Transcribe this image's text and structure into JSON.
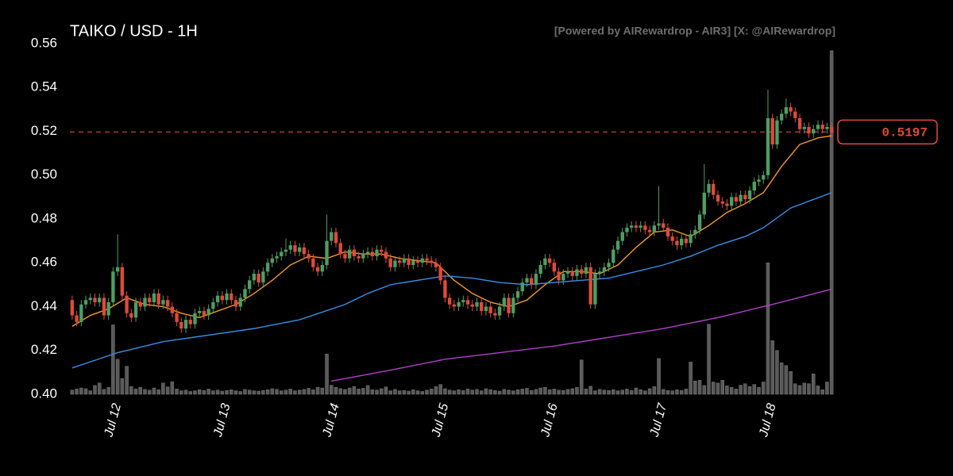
{
  "chart_data": {
    "type": "candlestick",
    "title": "TAIKO / USD - 1H",
    "subtitle": "[Powered by AIRewardrop - AIR3] [X: @AIRewardrop]",
    "colors": {
      "up": "#4e9e64",
      "down": "#e04a3a",
      "volume": "#5a5a5a",
      "last_price": "#e04a3a"
    },
    "xlim": [
      -10.5,
      157.5
    ],
    "xticks": [
      {
        "value": 0,
        "label": "Jul 12"
      },
      {
        "value": 24,
        "label": "Jul 13"
      },
      {
        "value": 48,
        "label": "Jul 14"
      },
      {
        "value": 72,
        "label": "Jul 15"
      },
      {
        "value": 96,
        "label": "Jul 16"
      },
      {
        "value": 120,
        "label": "Jul 17"
      },
      {
        "value": 144,
        "label": "Jul 18"
      }
    ],
    "ylim": [
      0.4,
      0.56
    ],
    "yticks": [
      {
        "value": 0.4,
        "label": "0.40"
      },
      0.42,
      0.44,
      0.46,
      0.48,
      {
        "value": 0.5,
        "label": "0.50"
      },
      0.52,
      0.54,
      0.56
    ],
    "volume_ylim": [
      0,
      100
    ],
    "x": [
      -10,
      -9,
      -8,
      -7,
      -6,
      -5,
      -4,
      -3,
      -2,
      -1,
      0,
      1,
      2,
      3,
      4,
      5,
      6,
      7,
      8,
      9,
      10,
      11,
      12,
      13,
      14,
      15,
      16,
      17,
      18,
      19,
      20,
      21,
      22,
      23,
      24,
      25,
      26,
      27,
      28,
      29,
      30,
      31,
      32,
      33,
      34,
      35,
      36,
      37,
      38,
      39,
      40,
      41,
      42,
      43,
      44,
      45,
      46,
      47,
      48,
      49,
      50,
      51,
      52,
      53,
      54,
      55,
      56,
      57,
      58,
      59,
      60,
      61,
      62,
      63,
      64,
      65,
      66,
      67,
      68,
      69,
      70,
      71,
      72,
      73,
      74,
      75,
      76,
      77,
      78,
      79,
      80,
      81,
      82,
      83,
      84,
      85,
      86,
      87,
      88,
      89,
      90,
      91,
      92,
      93,
      94,
      95,
      96,
      97,
      98,
      99,
      100,
      101,
      102,
      103,
      104,
      105,
      106,
      107,
      108,
      109,
      110,
      111,
      112,
      113,
      114,
      115,
      116,
      117,
      118,
      119,
      120,
      121,
      122,
      123,
      124,
      125,
      126,
      127,
      128,
      129,
      130,
      131,
      132,
      133,
      134,
      135,
      136,
      137,
      138,
      139,
      140,
      141,
      142,
      143,
      144,
      145,
      146,
      147,
      148,
      149,
      150,
      151,
      152,
      153,
      154,
      155,
      156,
      157
    ],
    "open": [
      0.443,
      0.436,
      0.433,
      0.441,
      0.443,
      0.444,
      0.442,
      0.444,
      0.436,
      0.442,
      0.456,
      0.458,
      0.445,
      0.437,
      0.435,
      0.442,
      0.44,
      0.444,
      0.442,
      0.446,
      0.441,
      0.443,
      0.44,
      0.437,
      0.433,
      0.43,
      0.434,
      0.432,
      0.437,
      0.438,
      0.436,
      0.439,
      0.442,
      0.445,
      0.443,
      0.446,
      0.443,
      0.44,
      0.444,
      0.448,
      0.452,
      0.455,
      0.451,
      0.456,
      0.46,
      0.462,
      0.463,
      0.465,
      0.466,
      0.468,
      0.465,
      0.467,
      0.464,
      0.462,
      0.458,
      0.456,
      0.459,
      0.47,
      0.474,
      0.469,
      0.464,
      0.462,
      0.466,
      0.463,
      0.462,
      0.464,
      0.465,
      0.463,
      0.466,
      0.465,
      0.462,
      0.458,
      0.461,
      0.46,
      0.462,
      0.459,
      0.461,
      0.46,
      0.462,
      0.461,
      0.46,
      0.458,
      0.452,
      0.444,
      0.441,
      0.44,
      0.442,
      0.443,
      0.441,
      0.44,
      0.442,
      0.438,
      0.44,
      0.437,
      0.436,
      0.44,
      0.444,
      0.437,
      0.444,
      0.447,
      0.451,
      0.453,
      0.45,
      0.455,
      0.459,
      0.462,
      0.46,
      0.456,
      0.452,
      0.455,
      0.456,
      0.454,
      0.457,
      0.455,
      0.458,
      0.441,
      0.455,
      0.456,
      0.458,
      0.46,
      0.466,
      0.47,
      0.474,
      0.476,
      0.477,
      0.476,
      0.477,
      0.475,
      0.474,
      0.477,
      0.478,
      0.476,
      0.472,
      0.47,
      0.468,
      0.471,
      0.469,
      0.473,
      0.475,
      0.482,
      0.492,
      0.496,
      0.491,
      0.488,
      0.487,
      0.486,
      0.49,
      0.488,
      0.491,
      0.489,
      0.493,
      0.497,
      0.498,
      0.5,
      0.526,
      0.514,
      0.525,
      0.528,
      0.531,
      0.529,
      0.526,
      0.521,
      0.522,
      0.519,
      0.521,
      0.523,
      0.521,
      0.522
    ],
    "high": [
      0.445,
      0.438,
      0.443,
      0.445,
      0.446,
      0.446,
      0.446,
      0.446,
      0.444,
      0.458,
      0.473,
      0.46,
      0.447,
      0.439,
      0.444,
      0.444,
      0.446,
      0.446,
      0.448,
      0.448,
      0.445,
      0.445,
      0.442,
      0.439,
      0.435,
      0.436,
      0.436,
      0.439,
      0.44,
      0.44,
      0.441,
      0.444,
      0.447,
      0.447,
      0.448,
      0.448,
      0.445,
      0.446,
      0.45,
      0.454,
      0.457,
      0.457,
      0.458,
      0.462,
      0.464,
      0.465,
      0.467,
      0.471,
      0.47,
      0.47,
      0.469,
      0.469,
      0.466,
      0.464,
      0.46,
      0.461,
      0.482,
      0.476,
      0.476,
      0.471,
      0.466,
      0.468,
      0.468,
      0.465,
      0.466,
      0.467,
      0.467,
      0.468,
      0.468,
      0.467,
      0.464,
      0.463,
      0.463,
      0.464,
      0.464,
      0.463,
      0.463,
      0.464,
      0.464,
      0.463,
      0.462,
      0.46,
      0.454,
      0.446,
      0.443,
      0.444,
      0.445,
      0.445,
      0.443,
      0.444,
      0.444,
      0.442,
      0.442,
      0.439,
      0.442,
      0.446,
      0.446,
      0.446,
      0.449,
      0.453,
      0.455,
      0.455,
      0.457,
      0.461,
      0.464,
      0.464,
      0.462,
      0.458,
      0.457,
      0.458,
      0.458,
      0.459,
      0.459,
      0.46,
      0.46,
      0.457,
      0.458,
      0.46,
      0.462,
      0.468,
      0.472,
      0.476,
      0.478,
      0.479,
      0.479,
      0.479,
      0.479,
      0.477,
      0.479,
      0.495,
      0.48,
      0.478,
      0.474,
      0.472,
      0.473,
      0.473,
      0.475,
      0.477,
      0.484,
      0.505,
      0.498,
      0.498,
      0.493,
      0.49,
      0.489,
      0.492,
      0.492,
      0.493,
      0.493,
      0.495,
      0.499,
      0.5,
      0.502,
      0.539,
      0.528,
      0.527,
      0.53,
      0.535,
      0.533,
      0.531,
      0.528,
      0.524,
      0.524,
      0.523,
      0.525,
      0.525,
      0.524,
      0.524
    ],
    "low": [
      0.434,
      0.431,
      0.431,
      0.439,
      0.441,
      0.44,
      0.44,
      0.434,
      0.434,
      0.44,
      0.454,
      0.443,
      0.435,
      0.433,
      0.433,
      0.438,
      0.438,
      0.44,
      0.44,
      0.439,
      0.439,
      0.438,
      0.435,
      0.431,
      0.428,
      0.428,
      0.43,
      0.43,
      0.435,
      0.434,
      0.434,
      0.437,
      0.44,
      0.441,
      0.441,
      0.441,
      0.438,
      0.438,
      0.442,
      0.446,
      0.45,
      0.449,
      0.449,
      0.454,
      0.458,
      0.46,
      0.461,
      0.463,
      0.464,
      0.463,
      0.463,
      0.462,
      0.46,
      0.456,
      0.454,
      0.454,
      0.457,
      0.468,
      0.467,
      0.462,
      0.46,
      0.46,
      0.461,
      0.46,
      0.46,
      0.462,
      0.461,
      0.461,
      0.463,
      0.46,
      0.456,
      0.456,
      0.458,
      0.458,
      0.457,
      0.457,
      0.458,
      0.458,
      0.459,
      0.458,
      0.456,
      0.45,
      0.442,
      0.439,
      0.438,
      0.438,
      0.44,
      0.439,
      0.438,
      0.438,
      0.436,
      0.436,
      0.435,
      0.434,
      0.434,
      0.438,
      0.435,
      0.435,
      0.442,
      0.445,
      0.449,
      0.448,
      0.448,
      0.453,
      0.457,
      0.458,
      0.454,
      0.45,
      0.45,
      0.453,
      0.452,
      0.452,
      0.453,
      0.453,
      0.439,
      0.439,
      0.453,
      0.454,
      0.456,
      0.458,
      0.464,
      0.468,
      0.472,
      0.474,
      0.474,
      0.474,
      0.473,
      0.472,
      0.472,
      0.475,
      0.474,
      0.47,
      0.468,
      0.466,
      0.466,
      0.467,
      0.467,
      0.471,
      0.473,
      0.48,
      0.49,
      0.489,
      0.486,
      0.485,
      0.484,
      0.484,
      0.486,
      0.486,
      0.487,
      0.487,
      0.491,
      0.495,
      0.496,
      0.498,
      0.512,
      0.512,
      0.523,
      0.526,
      0.527,
      0.524,
      0.519,
      0.519,
      0.517,
      0.517,
      0.519,
      0.519,
      0.519,
      0.517
    ],
    "close": [
      0.436,
      0.433,
      0.441,
      0.443,
      0.444,
      0.442,
      0.444,
      0.436,
      0.442,
      0.456,
      0.458,
      0.445,
      0.437,
      0.435,
      0.442,
      0.44,
      0.444,
      0.442,
      0.446,
      0.441,
      0.443,
      0.44,
      0.437,
      0.433,
      0.43,
      0.434,
      0.432,
      0.437,
      0.438,
      0.436,
      0.439,
      0.442,
      0.445,
      0.443,
      0.446,
      0.443,
      0.44,
      0.444,
      0.448,
      0.452,
      0.455,
      0.451,
      0.456,
      0.46,
      0.462,
      0.463,
      0.465,
      0.466,
      0.468,
      0.465,
      0.467,
      0.464,
      0.462,
      0.458,
      0.456,
      0.459,
      0.47,
      0.474,
      0.469,
      0.464,
      0.462,
      0.466,
      0.463,
      0.462,
      0.464,
      0.465,
      0.463,
      0.466,
      0.465,
      0.462,
      0.458,
      0.461,
      0.46,
      0.462,
      0.459,
      0.461,
      0.46,
      0.462,
      0.461,
      0.46,
      0.458,
      0.452,
      0.444,
      0.441,
      0.44,
      0.442,
      0.443,
      0.441,
      0.44,
      0.442,
      0.438,
      0.44,
      0.437,
      0.436,
      0.44,
      0.444,
      0.437,
      0.444,
      0.447,
      0.451,
      0.453,
      0.45,
      0.455,
      0.459,
      0.462,
      0.46,
      0.456,
      0.452,
      0.455,
      0.456,
      0.454,
      0.457,
      0.455,
      0.458,
      0.441,
      0.455,
      0.456,
      0.458,
      0.46,
      0.466,
      0.47,
      0.474,
      0.476,
      0.477,
      0.476,
      0.477,
      0.475,
      0.474,
      0.477,
      0.478,
      0.476,
      0.472,
      0.47,
      0.468,
      0.471,
      0.469,
      0.473,
      0.475,
      0.482,
      0.492,
      0.496,
      0.491,
      0.488,
      0.487,
      0.486,
      0.49,
      0.488,
      0.491,
      0.489,
      0.493,
      0.497,
      0.498,
      0.5,
      0.526,
      0.514,
      0.525,
      0.528,
      0.531,
      0.529,
      0.526,
      0.521,
      0.522,
      0.519,
      0.521,
      0.523,
      0.521,
      0.522,
      0.5197
    ],
    "volume": [
      1.2,
      1.5,
      1.8,
      1.6,
      1.0,
      2.5,
      3.2,
      1.4,
      2.0,
      19.8,
      10.0,
      4.5,
      8.0,
      2.2,
      1.5,
      2.0,
      1.4,
      1.2,
      1.8,
      1.3,
      3.2,
      2.1,
      3.6,
      1.5,
      1.0,
      1.2,
      0.8,
      1.0,
      1.3,
      1.1,
      1.5,
      1.0,
      1.2,
      0.9,
      1.1,
      1.3,
      1.0,
      0.8,
      1.4,
      1.2,
      1.0,
      0.9,
      1.1,
      1.3,
      1.6,
      1.4,
      1.0,
      1.2,
      1.5,
      1.0,
      1.2,
      1.4,
      1.7,
      1.3,
      2.0,
      1.8,
      11.5,
      2.6,
      2.0,
      1.6,
      1.4,
      1.8,
      2.2,
      1.5,
      1.7,
      2.5,
      1.3,
      1.2,
      1.6,
      2.1,
      1.0,
      1.4,
      1.0,
      1.1,
      0.9,
      1.3,
      1.0,
      0.8,
      1.2,
      1.5,
      2.2,
      2.8,
      1.6,
      1.2,
      1.0,
      1.3,
      1.1,
      1.5,
      1.2,
      1.4,
      1.0,
      1.6,
      1.3,
      1.1,
      0.9,
      1.4,
      1.2,
      1.0,
      1.3,
      1.5,
      1.7,
      1.1,
      1.4,
      1.8,
      2.0,
      1.3,
      1.5,
      1.2,
      1.1,
      1.4,
      1.6,
      2.0,
      9.8,
      1.5,
      2.3,
      1.0,
      1.4,
      1.2,
      1.1,
      1.3,
      1.0,
      1.2,
      1.5,
      1.1,
      1.8,
      1.3,
      1.0,
      1.6,
      2.2,
      10.2,
      1.4,
      1.1,
      1.0,
      1.3,
      1.1,
      1.5,
      9.2,
      3.8,
      4.0,
      2.5,
      20.0,
      3.5,
      3.2,
      4.0,
      2.4,
      2.0,
      1.5,
      2.6,
      3.0,
      2.2,
      2.8,
      2.0,
      3.5,
      37.5,
      15.3,
      12.5,
      9.0,
      8.2,
      6.5,
      3.0,
      2.5,
      3.2,
      3.0,
      5.8,
      2.4,
      1.3,
      3.5,
      98.0
    ],
    "moving_averages": [
      {
        "color": "#f39a2b",
        "x": [
          -10,
          -6,
          -2,
          2,
          6,
          10,
          14,
          18,
          22,
          26,
          30,
          34,
          38,
          42,
          46,
          50,
          54,
          58,
          62,
          66,
          70,
          74,
          78,
          82,
          86,
          90,
          94,
          98,
          102,
          106,
          110,
          114,
          118,
          122,
          126,
          130,
          134,
          138,
          142,
          146,
          150,
          154,
          157
        ],
        "values": [
          0.431,
          0.436,
          0.439,
          0.444,
          0.441,
          0.44,
          0.437,
          0.435,
          0.438,
          0.441,
          0.446,
          0.452,
          0.459,
          0.463,
          0.462,
          0.465,
          0.464,
          0.464,
          0.462,
          0.461,
          0.46,
          0.452,
          0.446,
          0.442,
          0.44,
          0.443,
          0.45,
          0.456,
          0.456,
          0.455,
          0.459,
          0.467,
          0.474,
          0.475,
          0.472,
          0.477,
          0.483,
          0.487,
          0.492,
          0.504,
          0.514,
          0.517,
          0.518
        ]
      },
      {
        "color": "#3a8ee6",
        "x": [
          -10,
          0,
          10,
          20,
          30,
          40,
          50,
          55,
          60,
          66,
          72,
          78,
          84,
          90,
          96,
          102,
          108,
          114,
          120,
          126,
          132,
          138,
          142,
          148,
          157
        ],
        "values": [
          0.412,
          0.419,
          0.424,
          0.427,
          0.43,
          0.434,
          0.441,
          0.446,
          0.45,
          0.452,
          0.454,
          0.453,
          0.451,
          0.45,
          0.451,
          0.452,
          0.453,
          0.456,
          0.459,
          0.463,
          0.468,
          0.472,
          0.476,
          0.485,
          0.492
        ]
      },
      {
        "color": "#b040c8",
        "x": [
          47,
          60,
          72,
          84,
          96,
          108,
          120,
          132,
          144,
          157
        ],
        "values": [
          0.406,
          0.411,
          0.416,
          0.419,
          0.422,
          0.426,
          0.43,
          0.435,
          0.441,
          0.448
        ]
      }
    ]
  }
}
